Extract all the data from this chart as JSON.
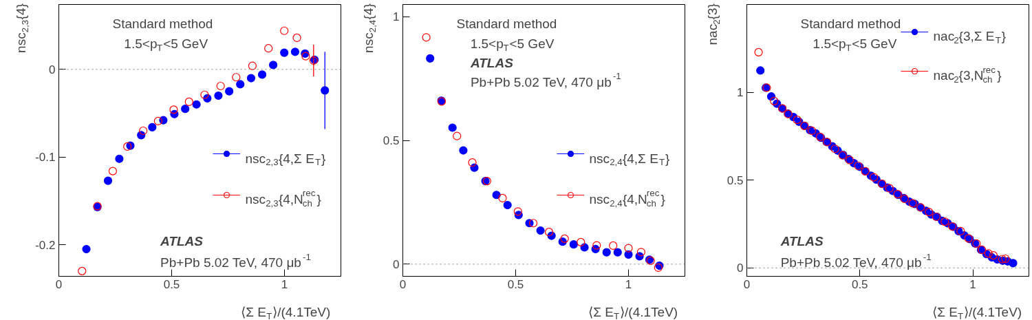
{
  "chart_data": [
    {
      "type": "scatter",
      "xlabel": "⟨Σ E$_{T}$⟩/(4.1TeV)",
      "ylabel": "nsc$_{2,3}${4}",
      "annotations": [
        "Standard method",
        "1.5<p$_{T}$<5 GeV",
        "ATLAS",
        "Pb+Pb 5.02 TeV, 470 μb$^{-1}$"
      ],
      "xlim": [
        0,
        1.25
      ],
      "ylim": [
        -0.236,
        0.074
      ],
      "xticks": [
        0,
        0.5,
        1
      ],
      "yticks": [
        -0.2,
        -0.1,
        0
      ],
      "grid": false,
      "legend": "right",
      "marker": "circle",
      "ref_lines": [
        {
          "axis": "y",
          "value": 0,
          "color": "#808080",
          "line_style": "dotted"
        }
      ],
      "series": [
        {
          "name": "nsc$_{2,3}${4,Σ E$_{T}$}",
          "color": "#0000ff",
          "x": [
            0.122,
            0.171,
            0.218,
            0.268,
            0.317,
            0.365,
            0.414,
            0.463,
            0.512,
            0.56,
            0.61,
            0.658,
            0.707,
            0.755,
            0.804,
            0.852,
            0.901,
            0.95,
            0.999,
            1.047,
            1.091,
            1.133,
            1.179
          ],
          "values": [
            -0.205,
            -0.157,
            -0.127,
            -0.102,
            -0.087,
            -0.075,
            -0.066,
            -0.058,
            -0.051,
            -0.045,
            -0.04,
            -0.033,
            -0.03,
            -0.025,
            -0.017,
            -0.01,
            -0.006,
            0.005,
            0.019,
            0.02,
            0.018,
            0.011,
            -0.024
          ],
          "errors": [
            null,
            null,
            null,
            null,
            null,
            null,
            null,
            null,
            null,
            null,
            null,
            null,
            null,
            null,
            null,
            null,
            null,
            null,
            null,
            null,
            null,
            null,
            0.044
          ]
        },
        {
          "name": "nsc$_{2,3}${4,N$^{rec}$$_{ch}$}",
          "color": "#ff0000",
          "x": [
            0.103,
            0.171,
            0.239,
            0.304,
            0.374,
            0.44,
            0.509,
            0.577,
            0.646,
            0.717,
            0.786,
            0.858,
            0.929,
            0.999,
            1.055,
            1.094,
            1.129
          ],
          "values": [
            -0.23,
            -0.156,
            -0.116,
            -0.088,
            -0.07,
            -0.059,
            -0.046,
            -0.037,
            -0.029,
            -0.019,
            -0.009,
            0.004,
            0.024,
            0.044,
            0.036,
            0.015,
            0.01
          ],
          "errors": [
            null,
            null,
            null,
            null,
            null,
            null,
            null,
            null,
            null,
            null,
            null,
            null,
            null,
            null,
            null,
            null,
            0.018
          ]
        }
      ]
    },
    {
      "type": "scatter",
      "xlabel": "⟨Σ E$_{T}$⟩/(4.1TeV)",
      "ylabel": "nsc$_{2,4}${4}",
      "annotations": [
        "Standard method",
        "1.5<p$_{T}$<5 GeV",
        "ATLAS",
        "Pb+Pb 5.02 TeV, 470 μb$^{-1}$"
      ],
      "xlim": [
        0,
        1.25
      ],
      "ylim": [
        -0.049,
        1.05
      ],
      "xticks": [
        0,
        0.5,
        1
      ],
      "yticks": [
        0,
        0.5,
        1
      ],
      "grid": false,
      "legend": "right",
      "marker": "circle",
      "ref_lines": [
        {
          "axis": "y",
          "value": 0,
          "color": "#808080",
          "line_style": "dotted"
        }
      ],
      "series": [
        {
          "name": "nsc$_{2,4}${4,Σ E$_{T}$}",
          "color": "#0000ff",
          "x": [
            0.121,
            0.171,
            0.22,
            0.268,
            0.317,
            0.366,
            0.415,
            0.464,
            0.513,
            0.561,
            0.61,
            0.659,
            0.708,
            0.757,
            0.805,
            0.854,
            0.903,
            0.952,
            1.0,
            1.049,
            1.093,
            1.137
          ],
          "values": [
            0.832,
            0.661,
            0.552,
            0.46,
            0.39,
            0.336,
            0.28,
            0.239,
            0.199,
            0.166,
            0.136,
            0.115,
            0.091,
            0.08,
            0.068,
            0.061,
            0.048,
            0.048,
            0.039,
            0.032,
            0.018,
            -0.006
          ]
        },
        {
          "name": "nsc$_{2,4}${4,N$^{rec}$$_{ch}$}",
          "color": "#ff0000",
          "x": [
            0.104,
            0.172,
            0.24,
            0.308,
            0.373,
            0.442,
            0.51,
            0.578,
            0.648,
            0.717,
            0.789,
            0.859,
            0.932,
            1.0,
            1.056,
            1.098,
            1.132
          ],
          "values": [
            0.917,
            0.658,
            0.518,
            0.411,
            0.336,
            0.267,
            0.213,
            0.166,
            0.13,
            0.103,
            0.089,
            0.076,
            0.075,
            0.065,
            0.049,
            0.014,
            -0.014
          ]
        }
      ]
    },
    {
      "type": "scatter",
      "xlabel": "⟨Σ E$_{T}$⟩/(4.1TeV)",
      "ylabel": "nac$_{2}${3}",
      "annotations": [
        "Standard method",
        "1.5<p$_{T}$<5 GeV",
        "ATLAS",
        "Pb+Pb 5.02 TeV, 470 μb$^{-1}$"
      ],
      "xlim": [
        0,
        1.248
      ],
      "ylim": [
        -0.048,
        1.5
      ],
      "xticks": [
        0,
        0.5,
        1
      ],
      "yticks": [
        0,
        0.5,
        1
      ],
      "grid": false,
      "legend": "top right",
      "marker": "circle",
      "ref_lines": [
        {
          "axis": "y",
          "value": 0,
          "color": "#808080",
          "line_style": "dotted"
        }
      ],
      "series": [
        {
          "name": "nac$_{2}${3,Σ E$_{T}$}",
          "color": "#0000ff",
          "x": [
            0.06,
            0.084,
            0.108,
            0.133,
            0.157,
            0.182,
            0.206,
            0.231,
            0.255,
            0.28,
            0.305,
            0.328,
            0.353,
            0.378,
            0.402,
            0.426,
            0.45,
            0.474,
            0.499,
            0.524,
            0.549,
            0.573,
            0.597,
            0.621,
            0.646,
            0.67,
            0.695,
            0.719,
            0.743,
            0.768,
            0.793,
            0.816,
            0.841,
            0.864,
            0.889,
            0.913,
            0.937,
            0.962,
            0.986,
            1.01,
            1.036,
            1.06,
            1.084,
            1.108,
            1.132,
            1.154,
            1.178
          ],
          "values": [
            1.124,
            1.026,
            0.976,
            0.935,
            0.908,
            0.878,
            0.859,
            0.832,
            0.809,
            0.784,
            0.766,
            0.741,
            0.717,
            0.692,
            0.668,
            0.643,
            0.62,
            0.596,
            0.576,
            0.55,
            0.525,
            0.503,
            0.479,
            0.457,
            0.438,
            0.416,
            0.397,
            0.377,
            0.364,
            0.344,
            0.325,
            0.304,
            0.291,
            0.268,
            0.254,
            0.234,
            0.209,
            0.185,
            0.164,
            0.139,
            0.103,
            0.079,
            0.06,
            0.048,
            0.041,
            0.037,
            0.027
          ]
        },
        {
          "name": "nac$_{2}${3,N$^{rec}$$_{ch}$}",
          "color": "#ff0000",
          "x": [
            0.052,
            0.088,
            0.121,
            0.157,
            0.183,
            0.223,
            0.255,
            0.288,
            0.324,
            0.355,
            0.39,
            0.424,
            0.455,
            0.493,
            0.524,
            0.562,
            0.598,
            0.631,
            0.667,
            0.698,
            0.734,
            0.769,
            0.806,
            0.838,
            0.876,
            0.909,
            0.946,
            0.981,
            1.016,
            1.04,
            1.069,
            1.091,
            1.13,
            1.144
          ],
          "values": [
            1.228,
            1.026,
            0.95,
            0.908,
            0.876,
            0.843,
            0.809,
            0.781,
            0.746,
            0.717,
            0.678,
            0.641,
            0.614,
            0.581,
            0.55,
            0.516,
            0.479,
            0.453,
            0.42,
            0.393,
            0.368,
            0.344,
            0.318,
            0.291,
            0.263,
            0.236,
            0.209,
            0.168,
            0.139,
            0.103,
            0.082,
            0.071,
            0.05,
            0.052
          ]
        }
      ]
    }
  ]
}
